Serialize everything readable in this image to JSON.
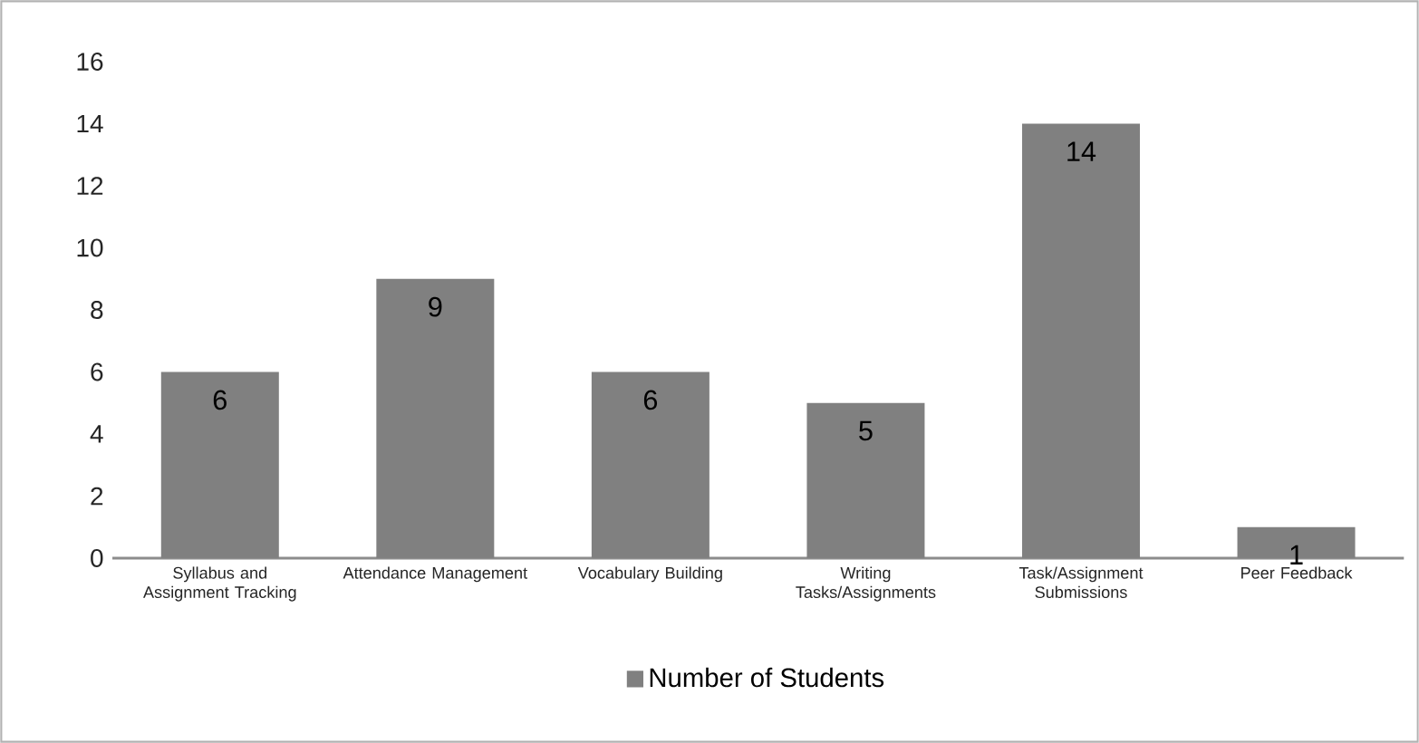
{
  "chart_data": {
    "type": "bar",
    "categories": [
      "Syllabus and Assignment Tracking",
      "Attendance Management",
      "Vocabulary Building",
      "Writing Tasks/Assignments",
      "Task/Assignment Submissions",
      "Peer Feedback"
    ],
    "series": [
      {
        "name": "Number of Students",
        "color": "#808080",
        "values": [
          6,
          9,
          6,
          5,
          14,
          1
        ]
      }
    ],
    "ylim": [
      0,
      16
    ],
    "yticks": [
      0,
      2,
      4,
      6,
      8,
      10,
      12,
      14,
      16
    ],
    "data_labels": true,
    "legend": "bottom"
  }
}
